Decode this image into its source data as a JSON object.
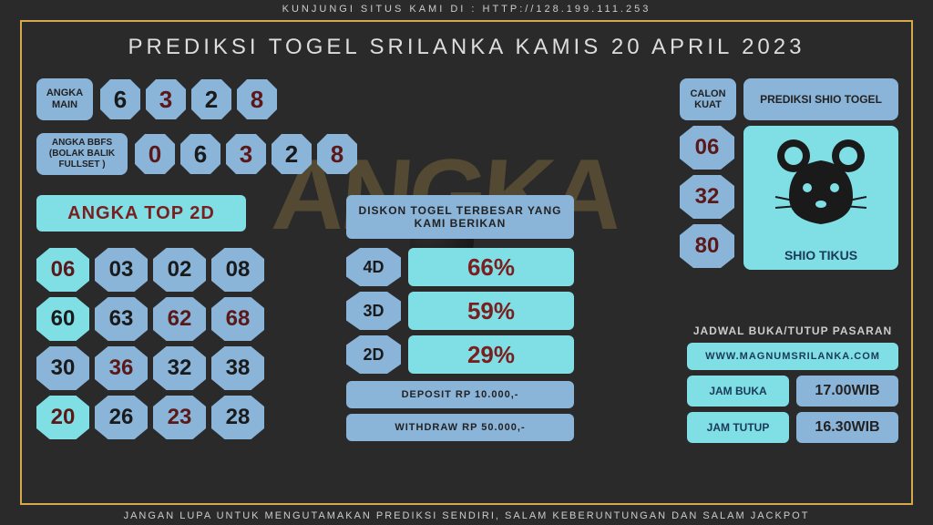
{
  "top_banner": "KUNJUNGI SITUS KAMI DI : HTTP://128.199.111.253",
  "bottom_banner": "JANGAN LUPA UNTUK MENGUTAMAKAN PREDIKSI SENDIRI, SALAM KEBERUNTUNGAN DAN SALAM JACKPOT",
  "main_title": "PREDIKSI TOGEL SRILANKA KAMIS 20 APRIL 2023",
  "colors": {
    "accent_gold": "#d4a84b",
    "chip_blue": "#8bb4d9",
    "chip_cyan": "#7fdfe5",
    "text_dark_red": "#5a1818",
    "text_black": "#1a1a1a",
    "bg": "#2a2a2a"
  },
  "angka_main": {
    "label": "ANGKA MAIN",
    "numbers": [
      {
        "v": "6",
        "dark": false
      },
      {
        "v": "3",
        "dark": true
      },
      {
        "v": "2",
        "dark": false
      },
      {
        "v": "8",
        "dark": true
      }
    ]
  },
  "angka_bbfs": {
    "label": "ANGKA BBFS (BOLAK BALIK FULLSET )",
    "numbers": [
      {
        "v": "0",
        "dark": true
      },
      {
        "v": "6",
        "dark": false
      },
      {
        "v": "3",
        "dark": true
      },
      {
        "v": "2",
        "dark": false
      },
      {
        "v": "8",
        "dark": true
      }
    ]
  },
  "top2d": {
    "title": "ANGKA TOP 2D",
    "cells": [
      {
        "v": "06",
        "bg": "cyan",
        "dark": true
      },
      {
        "v": "03",
        "bg": "blue",
        "dark": false
      },
      {
        "v": "02",
        "bg": "blue",
        "dark": false
      },
      {
        "v": "08",
        "bg": "blue",
        "dark": false
      },
      {
        "v": "60",
        "bg": "cyan",
        "dark": false
      },
      {
        "v": "63",
        "bg": "blue",
        "dark": false
      },
      {
        "v": "62",
        "bg": "blue",
        "dark": true
      },
      {
        "v": "68",
        "bg": "blue",
        "dark": true
      },
      {
        "v": "30",
        "bg": "blue",
        "dark": false
      },
      {
        "v": "36",
        "bg": "blue",
        "dark": true
      },
      {
        "v": "32",
        "bg": "blue",
        "dark": false
      },
      {
        "v": "38",
        "bg": "blue",
        "dark": false
      },
      {
        "v": "20",
        "bg": "cyan",
        "dark": true
      },
      {
        "v": "26",
        "bg": "blue",
        "dark": false
      },
      {
        "v": "23",
        "bg": "blue",
        "dark": true
      },
      {
        "v": "28",
        "bg": "blue",
        "dark": false
      }
    ]
  },
  "diskon": {
    "title": "DISKON TOGEL TERBESAR YANG KAMI BERIKAN",
    "rows": [
      {
        "label": "4D",
        "value": "66%"
      },
      {
        "label": "3D",
        "value": "59%"
      },
      {
        "label": "2D",
        "value": "29%"
      }
    ],
    "deposit": "DEPOSIT RP 10.000,-",
    "withdraw": "WITHDRAW RP 50.000,-"
  },
  "calon_kuat": {
    "label": "CALON KUAT",
    "numbers": [
      "06",
      "32",
      "80"
    ]
  },
  "shio": {
    "title": "PREDIKSI SHIO TOGEL",
    "name": "SHIO TIKUS"
  },
  "schedule": {
    "title": "JADWAL BUKA/TUTUP PASARAN",
    "link": "WWW.MAGNUMSRILANKA.COM",
    "rows": [
      {
        "label": "JAM BUKA",
        "value": "17.00WIB"
      },
      {
        "label": "JAM TUTUP",
        "value": "16.30WIB"
      }
    ]
  },
  "watermark": "ANGKA"
}
